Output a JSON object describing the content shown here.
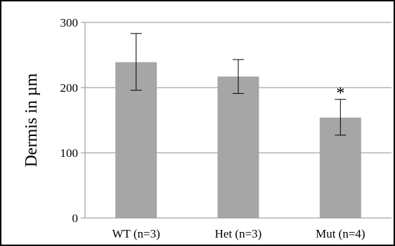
{
  "chart_data": {
    "type": "bar",
    "title": "",
    "xlabel": "",
    "ylabel": "Dermis in µm",
    "ylim": [
      0,
      300
    ],
    "yticks": [
      0,
      100,
      200,
      300
    ],
    "grid": true,
    "categories": [
      "WT (n=3)",
      "Het (n=3)",
      "Mut (n=4)"
    ],
    "values": [
      239,
      217,
      154
    ],
    "error_low": [
      196,
      191,
      127
    ],
    "error_high": [
      283,
      243,
      182
    ],
    "annotations": [
      "",
      "",
      "*"
    ],
    "colors": {
      "bar": "#a6a6a6",
      "grid": "#8c8c8c",
      "error": "#000000"
    }
  }
}
